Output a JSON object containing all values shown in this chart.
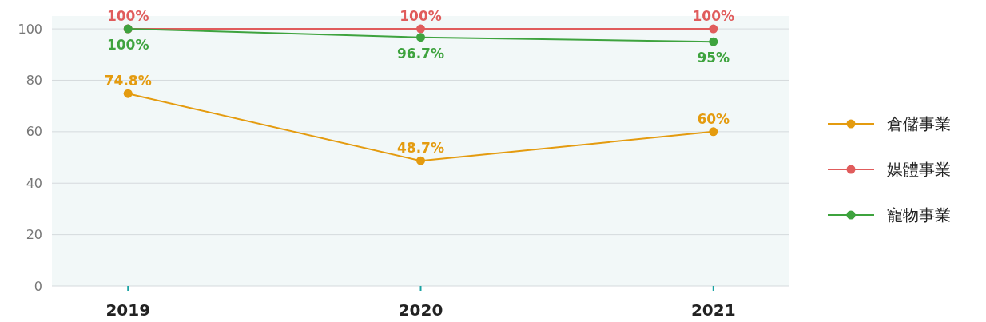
{
  "chart_data": {
    "type": "line",
    "categories": [
      "2019",
      "2020",
      "2021"
    ],
    "series": [
      {
        "name": "倉儲事業",
        "color": "#e49b0f",
        "values": [
          74.8,
          48.7,
          60
        ],
        "value_labels": [
          "74.8%",
          "48.7%",
          "60%"
        ]
      },
      {
        "name": "媒體事業",
        "color": "#e05c5c",
        "values": [
          100,
          100,
          100
        ],
        "value_labels": [
          "100%",
          "100%",
          "100%"
        ]
      },
      {
        "name": "寵物事業",
        "color": "#3ea33e",
        "values": [
          100,
          96.7,
          95
        ],
        "value_labels": [
          "100%",
          "96.7%",
          "95%"
        ]
      }
    ],
    "ylim": [
      0,
      105
    ],
    "yticks": [
      0,
      20,
      40,
      60,
      80,
      100
    ],
    "grid": "y",
    "legend": "right",
    "marker": "circle",
    "line_style": "solid"
  }
}
